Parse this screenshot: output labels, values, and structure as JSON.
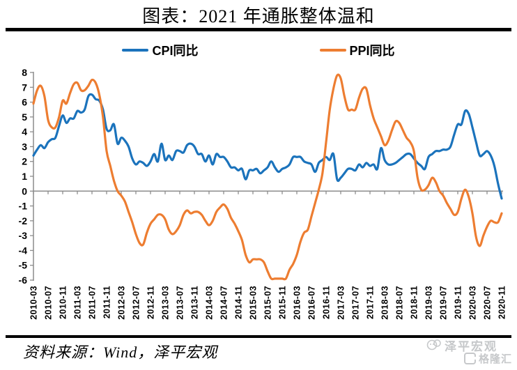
{
  "title": "图表：2021 年通胀整体温和",
  "source_note": "资料来源：Wind，泽平宏观",
  "watermarks": {
    "zeping": "泽平宏观",
    "gelonghui": "格隆汇"
  },
  "colors": {
    "cpi_line": "#1B73BC",
    "ppi_line": "#ED7D31",
    "axis": "#8C8C8C",
    "divider": "#000000",
    "watermark": "#C6C8CA"
  },
  "chart_data": {
    "type": "line",
    "title": "图表：2021 年通胀整体温和",
    "legend_position": "top",
    "grid": "none",
    "zero_line": true,
    "ylim": [
      -6,
      8
    ],
    "y_ticks": [
      8,
      7,
      6,
      5,
      4,
      3,
      2,
      1,
      0,
      -1,
      -2,
      -3,
      -4,
      -5,
      -6
    ],
    "x_tick_every": 4,
    "x": [
      "2010-03",
      "2010-04",
      "2010-05",
      "2010-06",
      "2010-07",
      "2010-08",
      "2010-09",
      "2010-10",
      "2010-11",
      "2010-12",
      "2011-01",
      "2011-02",
      "2011-03",
      "2011-04",
      "2011-05",
      "2011-06",
      "2011-07",
      "2011-08",
      "2011-09",
      "2011-10",
      "2011-11",
      "2011-12",
      "2012-01",
      "2012-02",
      "2012-03",
      "2012-04",
      "2012-05",
      "2012-06",
      "2012-07",
      "2012-08",
      "2012-09",
      "2012-10",
      "2012-11",
      "2012-12",
      "2013-01",
      "2013-02",
      "2013-03",
      "2013-04",
      "2013-05",
      "2013-06",
      "2013-07",
      "2013-08",
      "2013-09",
      "2013-10",
      "2013-11",
      "2013-12",
      "2014-01",
      "2014-02",
      "2014-03",
      "2014-04",
      "2014-05",
      "2014-06",
      "2014-07",
      "2014-08",
      "2014-09",
      "2014-10",
      "2014-11",
      "2014-12",
      "2015-01",
      "2015-02",
      "2015-03",
      "2015-04",
      "2015-05",
      "2015-06",
      "2015-07",
      "2015-08",
      "2015-09",
      "2015-10",
      "2015-11",
      "2015-12",
      "2016-01",
      "2016-02",
      "2016-03",
      "2016-04",
      "2016-05",
      "2016-06",
      "2016-07",
      "2016-08",
      "2016-09",
      "2016-10",
      "2016-11",
      "2016-12",
      "2017-01",
      "2017-02",
      "2017-03",
      "2017-04",
      "2017-05",
      "2017-06",
      "2017-07",
      "2017-08",
      "2017-09",
      "2017-10",
      "2017-11",
      "2017-12",
      "2018-01",
      "2018-02",
      "2018-03",
      "2018-04",
      "2018-05",
      "2018-06",
      "2018-07",
      "2018-08",
      "2018-09",
      "2018-10",
      "2018-11",
      "2018-12",
      "2019-01",
      "2019-02",
      "2019-03",
      "2019-04",
      "2019-05",
      "2019-06",
      "2019-07",
      "2019-08",
      "2019-09",
      "2019-10",
      "2019-11",
      "2019-12",
      "2020-01",
      "2020-02",
      "2020-03",
      "2020-04",
      "2020-05",
      "2020-06",
      "2020-07",
      "2020-08",
      "2020-09",
      "2020-10",
      "2020-11"
    ],
    "series": [
      {
        "name": "CPI同比",
        "color": "#1B73BC",
        "values": [
          2.4,
          2.8,
          3.1,
          2.9,
          3.3,
          3.5,
          3.6,
          4.4,
          5.1,
          4.6,
          4.9,
          4.9,
          5.4,
          5.3,
          5.5,
          6.4,
          6.5,
          6.2,
          6.1,
          5.5,
          4.2,
          4.1,
          4.5,
          3.2,
          3.6,
          3.4,
          3.0,
          2.2,
          1.8,
          2.0,
          1.9,
          1.7,
          2.0,
          2.5,
          2.0,
          3.2,
          2.1,
          2.4,
          2.1,
          2.7,
          2.7,
          2.6,
          3.1,
          3.2,
          3.0,
          2.5,
          2.5,
          2.0,
          2.4,
          1.8,
          2.5,
          2.3,
          2.3,
          2.0,
          1.6,
          1.6,
          1.4,
          1.5,
          0.8,
          1.4,
          1.4,
          1.5,
          1.2,
          1.4,
          1.6,
          2.0,
          1.6,
          1.3,
          1.5,
          1.6,
          1.8,
          2.3,
          2.3,
          2.3,
          2.0,
          1.9,
          1.8,
          1.3,
          1.9,
          2.1,
          2.3,
          2.1,
          2.5,
          0.8,
          0.9,
          1.2,
          1.5,
          1.5,
          1.4,
          1.8,
          1.6,
          1.9,
          1.7,
          1.8,
          1.5,
          2.9,
          2.1,
          1.8,
          1.8,
          1.9,
          2.1,
          2.3,
          2.5,
          2.5,
          2.2,
          1.9,
          1.7,
          1.5,
          2.3,
          2.5,
          2.7,
          2.7,
          2.8,
          2.8,
          3.0,
          3.8,
          4.5,
          4.5,
          5.4,
          5.2,
          4.3,
          3.3,
          2.4,
          2.5,
          2.7,
          2.4,
          1.7,
          0.5,
          -0.5
        ]
      },
      {
        "name": "PPI同比",
        "color": "#ED7D31",
        "values": [
          5.9,
          6.8,
          7.1,
          6.4,
          4.8,
          4.3,
          4.3,
          5.0,
          6.1,
          5.9,
          6.6,
          7.2,
          7.3,
          6.8,
          6.8,
          7.1,
          7.5,
          7.3,
          6.5,
          5.0,
          2.7,
          1.7,
          0.7,
          0.0,
          -0.3,
          -0.7,
          -1.4,
          -2.1,
          -2.9,
          -3.5,
          -3.6,
          -2.8,
          -2.2,
          -1.9,
          -1.6,
          -1.6,
          -1.9,
          -2.6,
          -2.9,
          -2.7,
          -2.3,
          -1.6,
          -1.3,
          -1.5,
          -1.4,
          -1.4,
          -1.6,
          -2.0,
          -2.3,
          -2.0,
          -1.4,
          -1.1,
          -0.9,
          -1.2,
          -1.8,
          -2.2,
          -2.7,
          -3.3,
          -4.3,
          -4.8,
          -4.6,
          -4.6,
          -4.6,
          -4.8,
          -5.4,
          -5.9,
          -5.9,
          -5.9,
          -5.9,
          -5.9,
          -5.3,
          -4.9,
          -4.3,
          -3.4,
          -2.8,
          -2.6,
          -1.7,
          -0.8,
          0.1,
          1.2,
          3.3,
          5.5,
          6.9,
          7.8,
          7.6,
          6.4,
          5.5,
          5.5,
          5.5,
          6.3,
          6.9,
          6.9,
          5.8,
          4.9,
          4.3,
          3.7,
          3.1,
          3.4,
          4.1,
          4.7,
          4.6,
          4.1,
          3.6,
          3.3,
          2.7,
          0.9,
          0.1,
          0.1,
          0.4,
          0.9,
          0.6,
          0.0,
          -0.3,
          -0.8,
          -1.2,
          -1.6,
          -1.4,
          -0.5,
          0.1,
          -0.4,
          -1.5,
          -3.1,
          -3.7,
          -3.0,
          -2.4,
          -2.0,
          -2.1,
          -2.1,
          -1.5
        ]
      }
    ]
  }
}
